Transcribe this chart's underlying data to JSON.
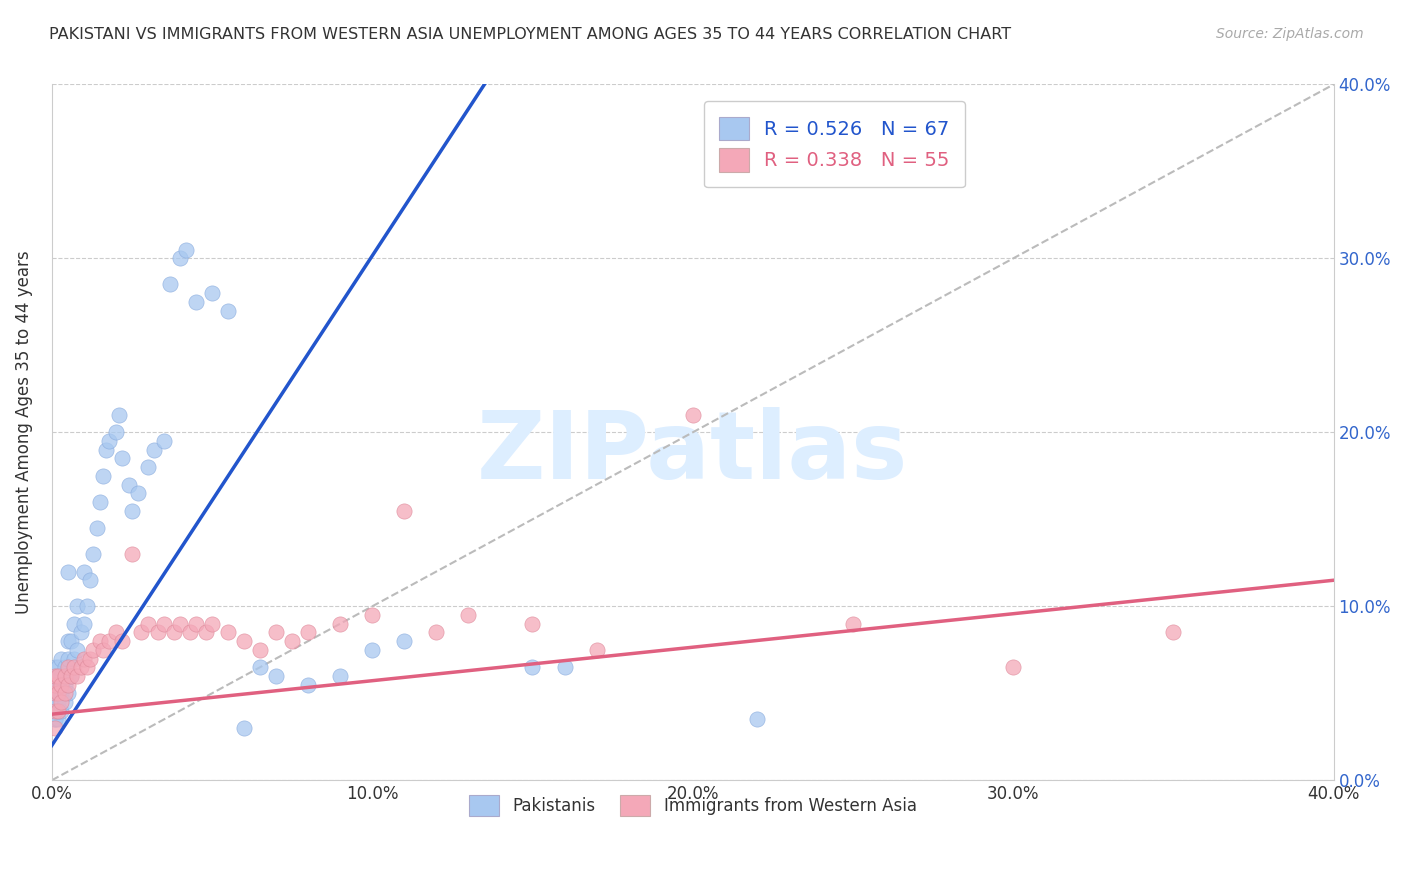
{
  "title": "PAKISTANI VS IMMIGRANTS FROM WESTERN ASIA UNEMPLOYMENT AMONG AGES 35 TO 44 YEARS CORRELATION CHART",
  "source": "Source: ZipAtlas.com",
  "ylabel": "Unemployment Among Ages 35 to 44 years",
  "xlim": [
    0,
    0.4
  ],
  "ylim": [
    0,
    0.4
  ],
  "xtick_vals": [
    0.0,
    0.1,
    0.2,
    0.3,
    0.4
  ],
  "ytick_vals": [
    0.0,
    0.1,
    0.2,
    0.3,
    0.4
  ],
  "pakistanis_color": "#a8c8f0",
  "western_asia_color": "#f4a8b8",
  "pakistanis_line_color": "#2255cc",
  "western_asia_line_color": "#e06080",
  "diagonal_color": "#bbbbbb",
  "R_pakistanis": 0.526,
  "N_pakistanis": 67,
  "R_western_asia": 0.338,
  "N_western_asia": 55,
  "legend_label_1": "Pakistanis",
  "legend_label_2": "Immigrants from Western Asia",
  "watermark": "ZIPatlas",
  "watermark_color": "#ddeeff",
  "background_color": "#ffffff",
  "grid_color": "#cccccc",
  "pak_line_x0": 0.0,
  "pak_line_y0": 0.02,
  "pak_line_x1": 0.135,
  "pak_line_y1": 0.4,
  "wa_line_x0": 0.0,
  "wa_line_y0": 0.038,
  "wa_line_x1": 0.4,
  "wa_line_y1": 0.115,
  "pakistanis_x": [
    0.001,
    0.001,
    0.001,
    0.001,
    0.001,
    0.001,
    0.001,
    0.001,
    0.002,
    0.002,
    0.002,
    0.002,
    0.002,
    0.003,
    0.003,
    0.003,
    0.003,
    0.004,
    0.004,
    0.004,
    0.005,
    0.005,
    0.005,
    0.005,
    0.005,
    0.006,
    0.006,
    0.007,
    0.007,
    0.008,
    0.008,
    0.009,
    0.01,
    0.01,
    0.011,
    0.012,
    0.013,
    0.014,
    0.015,
    0.016,
    0.017,
    0.018,
    0.02,
    0.021,
    0.022,
    0.024,
    0.025,
    0.027,
    0.03,
    0.032,
    0.035,
    0.037,
    0.04,
    0.042,
    0.045,
    0.05,
    0.055,
    0.06,
    0.065,
    0.07,
    0.08,
    0.09,
    0.1,
    0.11,
    0.15,
    0.16,
    0.22
  ],
  "pakistanis_y": [
    0.035,
    0.035,
    0.04,
    0.045,
    0.05,
    0.055,
    0.06,
    0.065,
    0.035,
    0.04,
    0.045,
    0.055,
    0.065,
    0.04,
    0.05,
    0.06,
    0.07,
    0.045,
    0.055,
    0.065,
    0.05,
    0.06,
    0.07,
    0.08,
    0.12,
    0.06,
    0.08,
    0.07,
    0.09,
    0.075,
    0.1,
    0.085,
    0.09,
    0.12,
    0.1,
    0.115,
    0.13,
    0.145,
    0.16,
    0.175,
    0.19,
    0.195,
    0.2,
    0.21,
    0.185,
    0.17,
    0.155,
    0.165,
    0.18,
    0.19,
    0.195,
    0.285,
    0.3,
    0.305,
    0.275,
    0.28,
    0.27,
    0.03,
    0.065,
    0.06,
    0.055,
    0.06,
    0.075,
    0.08,
    0.065,
    0.065,
    0.035
  ],
  "western_asia_x": [
    0.001,
    0.001,
    0.001,
    0.001,
    0.001,
    0.002,
    0.002,
    0.002,
    0.003,
    0.003,
    0.004,
    0.004,
    0.005,
    0.005,
    0.006,
    0.007,
    0.008,
    0.009,
    0.01,
    0.011,
    0.012,
    0.013,
    0.015,
    0.016,
    0.018,
    0.02,
    0.022,
    0.025,
    0.028,
    0.03,
    0.033,
    0.035,
    0.038,
    0.04,
    0.043,
    0.045,
    0.048,
    0.05,
    0.055,
    0.06,
    0.065,
    0.07,
    0.075,
    0.08,
    0.09,
    0.1,
    0.11,
    0.12,
    0.13,
    0.15,
    0.17,
    0.2,
    0.25,
    0.3,
    0.35
  ],
  "western_asia_y": [
    0.03,
    0.04,
    0.05,
    0.055,
    0.06,
    0.04,
    0.05,
    0.06,
    0.045,
    0.055,
    0.05,
    0.06,
    0.055,
    0.065,
    0.06,
    0.065,
    0.06,
    0.065,
    0.07,
    0.065,
    0.07,
    0.075,
    0.08,
    0.075,
    0.08,
    0.085,
    0.08,
    0.13,
    0.085,
    0.09,
    0.085,
    0.09,
    0.085,
    0.09,
    0.085,
    0.09,
    0.085,
    0.09,
    0.085,
    0.08,
    0.075,
    0.085,
    0.08,
    0.085,
    0.09,
    0.095,
    0.155,
    0.085,
    0.095,
    0.09,
    0.075,
    0.21,
    0.09,
    0.065,
    0.085
  ]
}
